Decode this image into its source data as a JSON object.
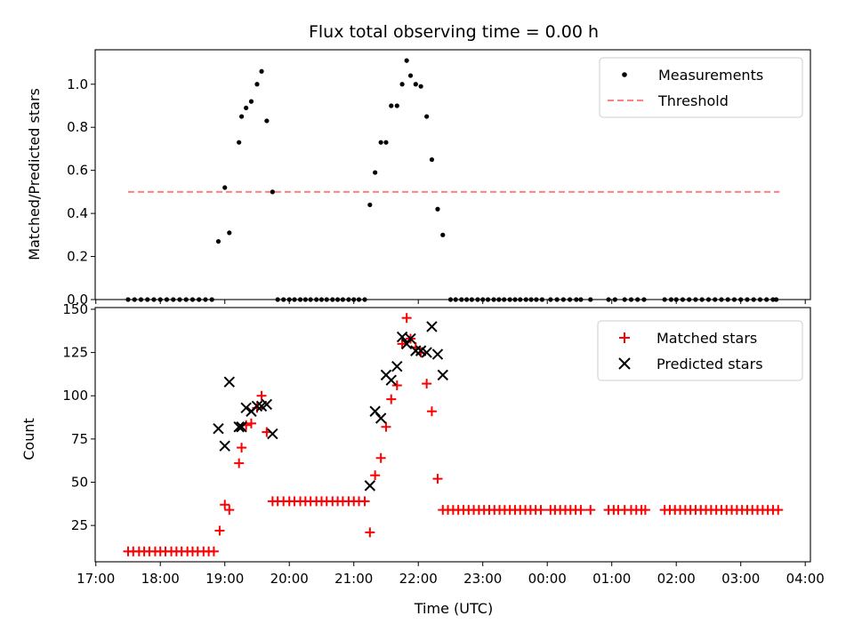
{
  "chart_data": [
    {
      "type": "scatter",
      "title": "Flux total observing time = 0.00 h",
      "xlabel": "",
      "ylabel": "Matched/Predicted stars",
      "xlim": [
        16.99,
        28.08
      ],
      "ylim": [
        0,
        1.16
      ],
      "yticks": [
        0.0,
        0.2,
        0.4,
        0.6,
        0.8,
        1.0
      ],
      "ytick_labels": [
        "0.0",
        "0.2",
        "0.4",
        "0.6",
        "0.8",
        "1.0"
      ],
      "legend": {
        "position": "top-right",
        "entries": [
          "Measurements",
          "Threshold"
        ]
      },
      "series": [
        {
          "name": "Measurements",
          "marker": "dot",
          "color": "#000000",
          "points": [
            [
              17.5,
              0
            ],
            [
              17.6,
              0
            ],
            [
              17.7,
              0
            ],
            [
              17.8,
              0
            ],
            [
              17.9,
              0
            ],
            [
              18.0,
              0
            ],
            [
              18.1,
              0
            ],
            [
              18.2,
              0
            ],
            [
              18.3,
              0
            ],
            [
              18.4,
              0
            ],
            [
              18.5,
              0
            ],
            [
              18.6,
              0
            ],
            [
              18.7,
              0
            ],
            [
              18.8,
              0
            ],
            [
              18.9,
              0.27
            ],
            [
              19.0,
              0.52
            ],
            [
              19.07,
              0.31
            ],
            [
              19.22,
              0.73
            ],
            [
              19.26,
              0.85
            ],
            [
              19.33,
              0.89
            ],
            [
              19.41,
              0.92
            ],
            [
              19.5,
              1.0
            ],
            [
              19.57,
              1.06
            ],
            [
              19.65,
              0.83
            ],
            [
              19.74,
              0.5
            ],
            [
              19.82,
              0
            ],
            [
              19.91,
              0
            ],
            [
              20.0,
              0
            ],
            [
              20.08,
              0
            ],
            [
              20.17,
              0
            ],
            [
              20.25,
              0
            ],
            [
              20.33,
              0
            ],
            [
              20.42,
              0
            ],
            [
              20.5,
              0
            ],
            [
              20.58,
              0
            ],
            [
              20.67,
              0
            ],
            [
              20.75,
              0
            ],
            [
              20.83,
              0
            ],
            [
              20.92,
              0
            ],
            [
              21.0,
              0
            ],
            [
              21.08,
              0
            ],
            [
              21.17,
              0
            ],
            [
              21.25,
              0.44
            ],
            [
              21.33,
              0.59
            ],
            [
              21.42,
              0.73
            ],
            [
              21.5,
              0.73
            ],
            [
              21.58,
              0.9
            ],
            [
              21.67,
              0.9
            ],
            [
              21.75,
              1.0
            ],
            [
              21.82,
              1.11
            ],
            [
              21.88,
              1.04
            ],
            [
              21.96,
              1.0
            ],
            [
              22.04,
              0.99
            ],
            [
              22.13,
              0.85
            ],
            [
              22.21,
              0.65
            ],
            [
              22.3,
              0.42
            ],
            [
              22.38,
              0.3
            ],
            [
              22.5,
              0
            ],
            [
              22.58,
              0
            ],
            [
              22.67,
              0
            ],
            [
              22.75,
              0
            ],
            [
              22.83,
              0
            ],
            [
              22.92,
              0
            ],
            [
              23.0,
              0
            ],
            [
              23.08,
              0
            ],
            [
              23.17,
              0
            ],
            [
              23.25,
              0
            ],
            [
              23.33,
              0
            ],
            [
              23.42,
              0
            ],
            [
              23.5,
              0
            ],
            [
              23.58,
              0
            ],
            [
              23.67,
              0
            ],
            [
              23.75,
              0
            ],
            [
              23.83,
              0
            ],
            [
              23.92,
              0
            ],
            [
              24.05,
              0
            ],
            [
              24.15,
              0
            ],
            [
              24.25,
              0
            ],
            [
              24.35,
              0
            ],
            [
              24.45,
              0
            ],
            [
              24.52,
              0
            ],
            [
              24.67,
              0
            ],
            [
              24.95,
              0
            ],
            [
              25.05,
              0
            ],
            [
              25.2,
              0
            ],
            [
              25.3,
              0
            ],
            [
              25.4,
              0
            ],
            [
              25.5,
              0
            ],
            [
              25.82,
              0
            ],
            [
              25.92,
              0
            ],
            [
              26.0,
              0
            ],
            [
              26.1,
              0
            ],
            [
              26.2,
              0
            ],
            [
              26.3,
              0
            ],
            [
              26.4,
              0
            ],
            [
              26.5,
              0
            ],
            [
              26.6,
              0
            ],
            [
              26.7,
              0
            ],
            [
              26.8,
              0
            ],
            [
              26.9,
              0
            ],
            [
              27.0,
              0
            ],
            [
              27.1,
              0
            ],
            [
              27.2,
              0
            ],
            [
              27.3,
              0
            ],
            [
              27.4,
              0
            ],
            [
              27.5,
              0
            ],
            [
              27.55,
              0
            ]
          ]
        },
        {
          "name": "Threshold",
          "style": "dashed",
          "color": "#ff8080",
          "points": [
            [
              17.5,
              0.5
            ],
            [
              27.6,
              0.5
            ]
          ]
        }
      ]
    },
    {
      "type": "scatter",
      "title": "",
      "xlabel": "Time (UTC)",
      "ylabel": "Count",
      "xlim": [
        16.99,
        28.08
      ],
      "ylim": [
        4,
        151
      ],
      "yticks": [
        25,
        50,
        75,
        100,
        125,
        150
      ],
      "ytick_labels": [
        "25",
        "50",
        "75",
        "100",
        "125",
        "150"
      ],
      "xticks": [
        17,
        18,
        19,
        20,
        21,
        22,
        23,
        24,
        25,
        26,
        27,
        28
      ],
      "xtick_labels": [
        "17:00",
        "18:00",
        "19:00",
        "20:00",
        "21:00",
        "22:00",
        "23:00",
        "00:00",
        "01:00",
        "02:00",
        "03:00",
        "04:00"
      ],
      "legend": {
        "position": "top-right",
        "entries": [
          "Matched stars",
          "Predicted stars"
        ]
      },
      "series": [
        {
          "name": "Matched stars",
          "marker": "plus",
          "color": "#ff0000",
          "points": [
            [
              17.5,
              10
            ],
            [
              17.58,
              10
            ],
            [
              17.67,
              10
            ],
            [
              17.75,
              10
            ],
            [
              17.83,
              10
            ],
            [
              17.92,
              10
            ],
            [
              18.0,
              10
            ],
            [
              18.08,
              10
            ],
            [
              18.17,
              10
            ],
            [
              18.25,
              10
            ],
            [
              18.33,
              10
            ],
            [
              18.42,
              10
            ],
            [
              18.5,
              10
            ],
            [
              18.58,
              10
            ],
            [
              18.67,
              10
            ],
            [
              18.75,
              10
            ],
            [
              18.83,
              10
            ],
            [
              18.92,
              22
            ],
            [
              19.0,
              37
            ],
            [
              19.07,
              34
            ],
            [
              19.22,
              61
            ],
            [
              19.26,
              70
            ],
            [
              19.33,
              83
            ],
            [
              19.41,
              84
            ],
            [
              19.5,
              93
            ],
            [
              19.57,
              100
            ],
            [
              19.65,
              79
            ],
            [
              19.74,
              39
            ],
            [
              19.82,
              39
            ],
            [
              19.91,
              39
            ],
            [
              20.0,
              39
            ],
            [
              20.08,
              39
            ],
            [
              20.17,
              39
            ],
            [
              20.25,
              39
            ],
            [
              20.33,
              39
            ],
            [
              20.42,
              39
            ],
            [
              20.5,
              39
            ],
            [
              20.58,
              39
            ],
            [
              20.67,
              39
            ],
            [
              20.75,
              39
            ],
            [
              20.83,
              39
            ],
            [
              20.92,
              39
            ],
            [
              21.0,
              39
            ],
            [
              21.08,
              39
            ],
            [
              21.17,
              39
            ],
            [
              21.25,
              21
            ],
            [
              21.33,
              54
            ],
            [
              21.42,
              64
            ],
            [
              21.5,
              82
            ],
            [
              21.58,
              98
            ],
            [
              21.67,
              106
            ],
            [
              21.75,
              130
            ],
            [
              21.82,
              145
            ],
            [
              21.88,
              133
            ],
            [
              21.96,
              128
            ],
            [
              22.04,
              125
            ],
            [
              22.13,
              107
            ],
            [
              22.21,
              91
            ],
            [
              22.3,
              52
            ],
            [
              22.38,
              34
            ],
            [
              22.46,
              34
            ],
            [
              22.54,
              34
            ],
            [
              22.62,
              34
            ],
            [
              22.7,
              34
            ],
            [
              22.78,
              34
            ],
            [
              22.86,
              34
            ],
            [
              22.94,
              34
            ],
            [
              23.02,
              34
            ],
            [
              23.1,
              34
            ],
            [
              23.18,
              34
            ],
            [
              23.26,
              34
            ],
            [
              23.34,
              34
            ],
            [
              23.42,
              34
            ],
            [
              23.5,
              34
            ],
            [
              23.58,
              34
            ],
            [
              23.66,
              34
            ],
            [
              23.74,
              34
            ],
            [
              23.82,
              34
            ],
            [
              23.9,
              34
            ],
            [
              24.05,
              34
            ],
            [
              24.12,
              34
            ],
            [
              24.2,
              34
            ],
            [
              24.28,
              34
            ],
            [
              24.36,
              34
            ],
            [
              24.44,
              34
            ],
            [
              24.52,
              34
            ],
            [
              24.67,
              34
            ],
            [
              24.95,
              34
            ],
            [
              25.03,
              34
            ],
            [
              25.1,
              34
            ],
            [
              25.2,
              34
            ],
            [
              25.3,
              34
            ],
            [
              25.38,
              34
            ],
            [
              25.46,
              34
            ],
            [
              25.52,
              34
            ],
            [
              25.82,
              34
            ],
            [
              25.9,
              34
            ],
            [
              25.98,
              34
            ],
            [
              26.06,
              34
            ],
            [
              26.14,
              34
            ],
            [
              26.22,
              34
            ],
            [
              26.3,
              34
            ],
            [
              26.38,
              34
            ],
            [
              26.46,
              34
            ],
            [
              26.54,
              34
            ],
            [
              26.62,
              34
            ],
            [
              26.7,
              34
            ],
            [
              26.78,
              34
            ],
            [
              26.86,
              34
            ],
            [
              26.94,
              34
            ],
            [
              27.02,
              34
            ],
            [
              27.1,
              34
            ],
            [
              27.18,
              34
            ],
            [
              27.26,
              34
            ],
            [
              27.34,
              34
            ],
            [
              27.42,
              34
            ],
            [
              27.5,
              34
            ],
            [
              27.58,
              34
            ]
          ]
        },
        {
          "name": "Predicted stars",
          "marker": "x",
          "color": "#000000",
          "points": [
            [
              18.9,
              81
            ],
            [
              19.0,
              71
            ],
            [
              19.07,
              108
            ],
            [
              19.22,
              82
            ],
            [
              19.26,
              82
            ],
            [
              19.33,
              93
            ],
            [
              19.41,
              91
            ],
            [
              19.5,
              94
            ],
            [
              19.57,
              94
            ],
            [
              19.65,
              95
            ],
            [
              19.74,
              78
            ],
            [
              21.25,
              48
            ],
            [
              21.33,
              91
            ],
            [
              21.42,
              87
            ],
            [
              21.5,
              112
            ],
            [
              21.58,
              109
            ],
            [
              21.67,
              117
            ],
            [
              21.75,
              134
            ],
            [
              21.82,
              130
            ],
            [
              21.88,
              133
            ],
            [
              21.96,
              126
            ],
            [
              22.04,
              126
            ],
            [
              22.13,
              125
            ],
            [
              22.21,
              140
            ],
            [
              22.3,
              124
            ],
            [
              22.38,
              112
            ]
          ]
        }
      ]
    }
  ]
}
